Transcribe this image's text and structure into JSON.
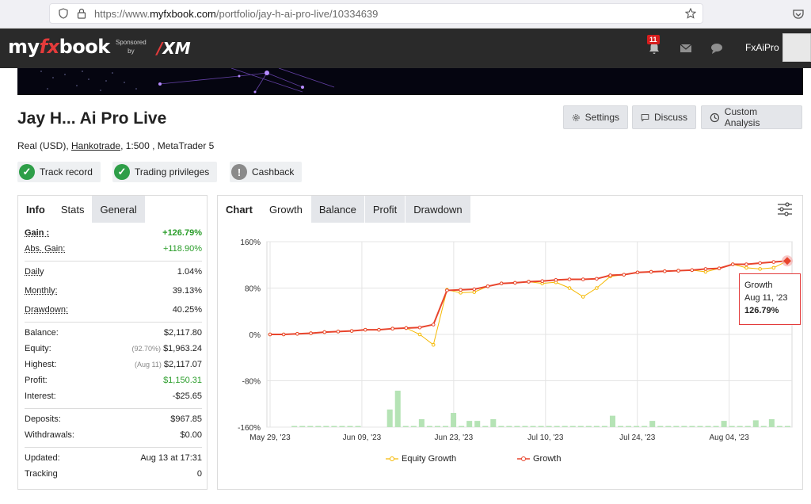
{
  "browser": {
    "url_prefix": "https://www.",
    "url_domain": "myfxbook.com",
    "url_path": "/portfolio/jay-h-ai-pro-live/10334639"
  },
  "header": {
    "logo_my": "my",
    "logo_fx": "fx",
    "logo_book": "book",
    "sponsored_line1": "Sponsored",
    "sponsored_line2": "by",
    "sponsor_brand": "XM",
    "notification_count": "11",
    "username": "FxAiPro"
  },
  "account": {
    "title": "Jay H... Ai Pro Live",
    "type": "Real (USD), ",
    "broker": "Hankotrade",
    "details": ", 1:500 , MetaTrader 5"
  },
  "actions": {
    "settings": "Settings",
    "discuss": "Discuss",
    "custom_analysis": "Custom Analysis"
  },
  "badges": {
    "track_record": "Track record",
    "trading_privileges": "Trading privileges",
    "cashback": "Cashback"
  },
  "info_tabs": [
    "Info",
    "Stats",
    "General"
  ],
  "stats": {
    "gain_label": "Gain :",
    "gain_value": "+126.79%",
    "abs_gain_label": "Abs. Gain:",
    "abs_gain_value": "+118.90%",
    "daily_label": "Daily",
    "daily_value": "1.04%",
    "monthly_label": "Monthly:",
    "monthly_value": "39.13%",
    "drawdown_label": "Drawdown:",
    "drawdown_value": "40.25%",
    "balance_label": "Balance:",
    "balance_value": "$2,117.80",
    "equity_label": "Equity:",
    "equity_note": "(92.70%)",
    "equity_value": "$1,963.24",
    "highest_label": "Highest:",
    "highest_note": "(Aug 11)",
    "highest_value": "$2,117.07",
    "profit_label": "Profit:",
    "profit_value": "$1,150.31",
    "interest_label": "Interest:",
    "interest_value": "-$25.65",
    "deposits_label": "Deposits:",
    "deposits_value": "$967.85",
    "withdrawals_label": "Withdrawals:",
    "withdrawals_value": "$0.00",
    "updated_label": "Updated:",
    "updated_value": "Aug 13 at 17:31",
    "tracking_label": "Tracking",
    "tracking_value": "0"
  },
  "chart_tabs": [
    "Chart",
    "Growth",
    "Balance",
    "Profit",
    "Drawdown"
  ],
  "tooltip": {
    "series": "Growth",
    "date": "Aug 11, '23",
    "value": "126.79%"
  },
  "colors": {
    "growth": "#e8442c",
    "equity": "#f5b800",
    "bars": "#b5e3b5",
    "accent_red": "#e33b3b",
    "gain_green": "#2a9d2a"
  },
  "chart_data": {
    "type": "line",
    "ylim": [
      -160,
      160
    ],
    "yticks": [
      "160%",
      "80%",
      "0%",
      "-80%",
      "-160%"
    ],
    "xticks": [
      "May 29, '23",
      "Jun 09, '23",
      "Jun 23, '23",
      "Jul 10, '23",
      "Jul 24, '23",
      "Aug 04, '23"
    ],
    "series": [
      {
        "name": "Growth",
        "values": [
          0,
          0,
          1,
          2,
          4,
          5,
          6,
          8,
          8,
          10,
          11,
          12,
          17,
          76,
          77,
          78,
          83,
          88,
          89,
          91,
          92,
          94,
          95,
          95,
          96,
          102,
          103,
          107,
          108,
          109,
          110,
          111,
          113,
          114,
          121,
          121,
          123,
          125,
          126.79
        ]
      },
      {
        "name": "Equity Growth",
        "values": [
          0,
          0,
          1,
          2,
          4,
          5,
          6,
          8,
          8,
          10,
          11,
          0,
          -18,
          77,
          72,
          73,
          83,
          88,
          89,
          91,
          88,
          90,
          80,
          65,
          80,
          100,
          103,
          107,
          108,
          109,
          110,
          111,
          108,
          114,
          121,
          115,
          113,
          115,
          126.79
        ]
      }
    ],
    "daily_bars": [
      0,
      0,
      0,
      2,
      2,
      2,
      2,
      2,
      2,
      2,
      2,
      2,
      0,
      0,
      0,
      31,
      64,
      2,
      2,
      14,
      2,
      2,
      2,
      25,
      2,
      11,
      11,
      2,
      14,
      2,
      2,
      2,
      2,
      2,
      2,
      2,
      2,
      2,
      2,
      2,
      2,
      2,
      2,
      20,
      2,
      2,
      2,
      2,
      11,
      2,
      2,
      2,
      2,
      2,
      2,
      2,
      2,
      11,
      2,
      2,
      2,
      12,
      2,
      14,
      2,
      2
    ]
  },
  "legend": {
    "equity": "Equity Growth",
    "growth": "Growth"
  }
}
